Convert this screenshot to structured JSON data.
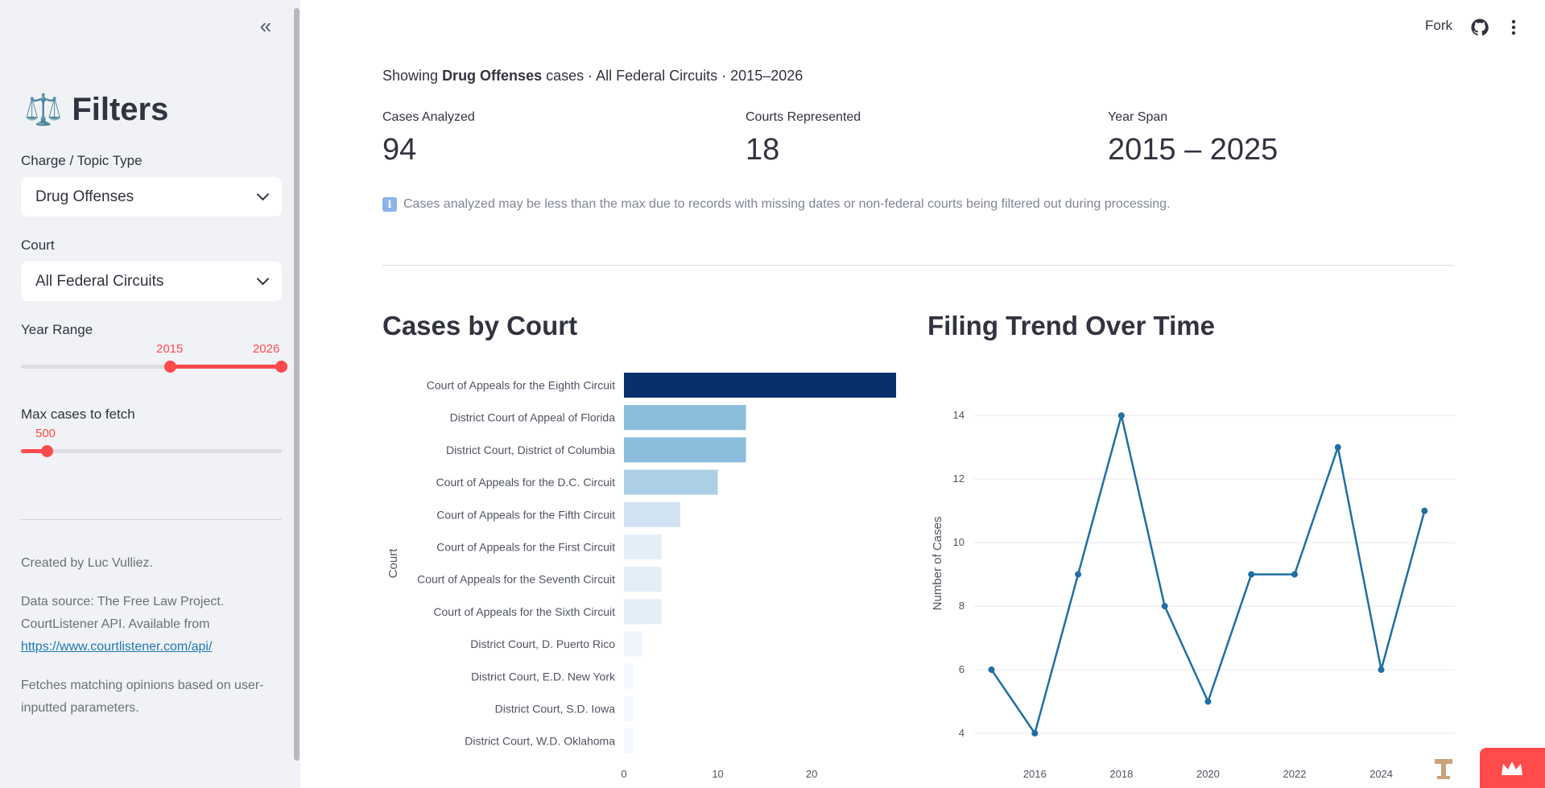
{
  "sidebar": {
    "collapse_icon": "«",
    "title_emoji": "⚖️",
    "title": "Filters",
    "charge_label": "Charge / Topic Type",
    "charge_value": "Drug Offenses",
    "court_label": "Court",
    "court_value": "All Federal Circuits",
    "year_label": "Year Range",
    "year_min": "2015",
    "year_max": "2026",
    "year_range_fraction": [
      0.57,
      1.0
    ],
    "max_label": "Max cases to fetch",
    "max_value": "500",
    "max_fraction": 0.1,
    "created_by": "Created by Luc Vulliez.",
    "source_line1": "Data source: The Free Law Project.",
    "source_line2": "CourtListener API. Available from",
    "source_link": "https://www.courtlistener.com/api/",
    "fetch_note_line1": "Fetches matching opinions based on user-",
    "fetch_note_line2": "inputted parameters."
  },
  "topbar": {
    "fork_label": "Fork",
    "github_icon": "github-icon",
    "menu_icon": "kebab-menu-icon"
  },
  "intro": {
    "prefix": "Showing ",
    "topic": "Drug Offenses",
    "suffix": " cases · All Federal Circuits · 2015–2026"
  },
  "metrics": [
    {
      "label": "Cases Analyzed",
      "value": "94"
    },
    {
      "label": "Courts Represented",
      "value": "18"
    },
    {
      "label": "Year Span",
      "value": "2015 – 2025"
    }
  ],
  "info": {
    "icon": "ℹ",
    "text": "Cases analyzed may be less than the max due to records with missing dates or non-federal courts being filtered out during processing."
  },
  "sections": {
    "court_title": "Cases by Court",
    "trend_title": "Filing Trend Over Time"
  },
  "colors": {
    "accent": "#ff4b4b",
    "line": "#1f6fa3"
  },
  "chart_data": [
    {
      "type": "bar",
      "orientation": "horizontal",
      "title": "Cases by Court",
      "ylabel": "Court",
      "xlabel": "",
      "categories": [
        "Court of Appeals for the Eighth Circuit",
        "District Court of Appeal of Florida",
        "District Court, District of Columbia",
        "Court of Appeals for the D.C. Circuit",
        "Court of Appeals for the Fifth Circuit",
        "Court of Appeals for the First Circuit",
        "Court of Appeals for the Seventh Circuit",
        "Court of Appeals for the Sixth Circuit",
        "District Court, D. Puerto Rico",
        "District Court, E.D. New York",
        "District Court, S.D. Iowa",
        "District Court, W.D. Oklahoma"
      ],
      "values": [
        29,
        13,
        13,
        10,
        6,
        4,
        4,
        4,
        2,
        1,
        1,
        1
      ],
      "xticks": [
        "0",
        "10",
        "20"
      ],
      "xlim": [
        0,
        29
      ],
      "colors": [
        "#08306b",
        "#8abcdc",
        "#8abcdc",
        "#abd0e6",
        "#d1e2f3",
        "#e3eef9",
        "#e3eef9",
        "#e3eef9",
        "#eef5fc",
        "#f5f9fe",
        "#f5f9fe",
        "#f5f9fe"
      ]
    },
    {
      "type": "line",
      "title": "Filing Trend Over Time",
      "ylabel": "Number of Cases",
      "xlabel": "",
      "x": [
        2015,
        2016,
        2017,
        2018,
        2019,
        2020,
        2021,
        2022,
        2023,
        2024,
        2025
      ],
      "values": [
        6,
        4,
        9,
        14,
        8,
        5,
        9,
        9,
        13,
        6,
        11
      ],
      "xticks": [
        "2016",
        "2018",
        "2020",
        "2022",
        "2024"
      ],
      "yticks": [
        "4",
        "6",
        "8",
        "10",
        "12",
        "14"
      ],
      "xlim": [
        2014.6,
        2025.7
      ],
      "ylim": [
        4,
        15.5
      ],
      "grid": true
    }
  ]
}
